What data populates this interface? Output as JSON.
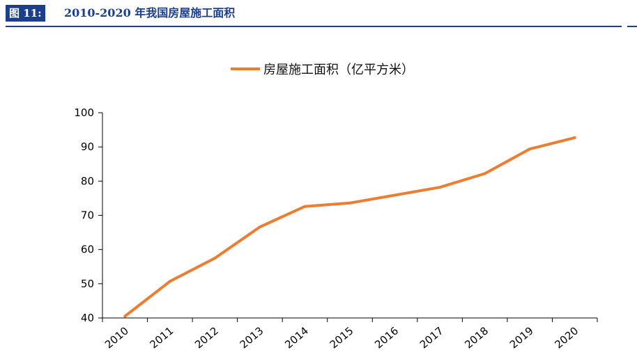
{
  "figure": {
    "label": "图 11:",
    "title": "2010-2020 年我国房屋施工面积"
  },
  "colors": {
    "header": "#1b3f8b",
    "series": "#ed7d31",
    "axis": "#000000"
  },
  "chart_data": {
    "type": "line",
    "title": "",
    "xlabel": "",
    "ylabel": "",
    "x": [
      "2010",
      "2011",
      "2012",
      "2013",
      "2014",
      "2015",
      "2016",
      "2017",
      "2018",
      "2019",
      "2020"
    ],
    "series": [
      {
        "name": "房屋施工面积（亿平方米）",
        "values": [
          40.5,
          50.7,
          57.5,
          66.6,
          72.6,
          73.6,
          75.9,
          78.2,
          82.2,
          89.4,
          92.7
        ]
      }
    ],
    "ylim": [
      40,
      100
    ],
    "yticks": [
      "40",
      "50",
      "60",
      "70",
      "80",
      "90",
      "100"
    ],
    "grid": false,
    "legend": "top-center"
  }
}
